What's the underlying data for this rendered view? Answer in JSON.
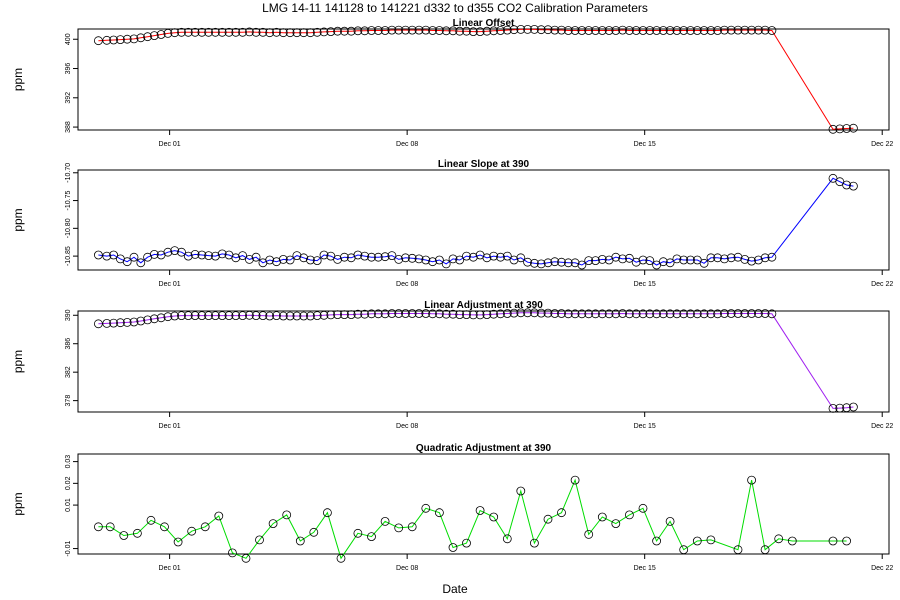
{
  "page_title": "LMG   14-11    141128 to 141221    d332 to d355   CO2 Calibration Parameters",
  "xlabel": "Date",
  "x_ticks": [
    "Dec 01",
    "Dec 08",
    "Dec 15",
    "Dec 22"
  ],
  "chart_data": [
    {
      "type": "line",
      "title": "Linear Offset",
      "ylabel": "ppm",
      "color": "#ff0000",
      "x_axis": "Day of year 2014 (Dec 01 = 335)",
      "xlim": [
        332.3,
        356.2
      ],
      "ylim": [
        387.6,
        401.4
      ],
      "y_ticks": [
        "400",
        "396",
        "392",
        "388"
      ],
      "x": [
        332.9,
        333.15,
        333.35,
        333.55,
        333.75,
        333.95,
        334.15,
        334.35,
        334.55,
        334.75,
        334.95,
        335.15,
        335.35,
        335.55,
        335.75,
        335.95,
        336.15,
        336.35,
        336.55,
        336.75,
        336.95,
        337.15,
        337.35,
        337.55,
        337.75,
        337.95,
        338.15,
        338.35,
        338.55,
        338.75,
        338.95,
        339.15,
        339.35,
        339.55,
        339.75,
        339.95,
        340.15,
        340.35,
        340.55,
        340.75,
        340.95,
        341.15,
        341.35,
        341.55,
        341.75,
        341.95,
        342.15,
        342.35,
        342.55,
        342.75,
        342.95,
        343.15,
        343.35,
        343.55,
        343.75,
        343.95,
        344.15,
        344.35,
        344.55,
        344.75,
        344.95,
        345.15,
        345.35,
        345.55,
        345.75,
        345.95,
        346.15,
        346.35,
        346.55,
        346.75,
        346.95,
        347.15,
        347.35,
        347.55,
        347.75,
        347.95,
        348.15,
        348.35,
        348.55,
        348.75,
        348.95,
        349.15,
        349.35,
        349.55,
        349.75,
        349.95,
        350.15,
        350.35,
        350.55,
        350.75,
        350.95,
        351.15,
        351.35,
        351.55,
        351.75,
        351.95,
        352.15,
        352.35,
        352.55,
        352.75,
        354.55,
        354.75,
        354.95,
        355.15
      ],
      "y": [
        399.8,
        399.85,
        399.9,
        399.95,
        400.0,
        400.05,
        400.2,
        400.35,
        400.5,
        400.65,
        400.8,
        400.9,
        400.95,
        400.95,
        400.95,
        400.95,
        400.95,
        400.95,
        400.95,
        400.95,
        400.95,
        400.95,
        401.0,
        400.95,
        400.95,
        400.9,
        400.95,
        400.9,
        400.9,
        400.9,
        400.9,
        400.9,
        400.95,
        401.0,
        401.05,
        401.1,
        401.1,
        401.1,
        401.15,
        401.15,
        401.2,
        401.2,
        401.2,
        401.25,
        401.25,
        401.25,
        401.25,
        401.25,
        401.25,
        401.2,
        401.2,
        401.15,
        401.15,
        401.1,
        401.1,
        401.05,
        401.05,
        401.1,
        401.15,
        401.2,
        401.25,
        401.3,
        401.35,
        401.35,
        401.35,
        401.3,
        401.3,
        401.25,
        401.25,
        401.2,
        401.2,
        401.2,
        401.2,
        401.2,
        401.2,
        401.2,
        401.2,
        401.25,
        401.2,
        401.2,
        401.2,
        401.2,
        401.2,
        401.2,
        401.2,
        401.2,
        401.2,
        401.2,
        401.2,
        401.2,
        401.2,
        401.2,
        401.25,
        401.25,
        401.25,
        401.25,
        401.25,
        401.25,
        401.25,
        401.2,
        387.7,
        387.75,
        387.8,
        387.85
      ]
    },
    {
      "type": "line",
      "title": "Linear Slope at 390",
      "ylabel": "ppm",
      "color": "#0000ff",
      "x_axis": "Day of year 2014 (Dec 01 = 335)",
      "xlim": [
        332.3,
        356.2
      ],
      "ylim": [
        -10.875,
        -10.695
      ],
      "y_ticks": [
        "-10.70",
        "-10.75",
        "-10.80",
        "-10.85"
      ],
      "x": [
        332.9,
        333.15,
        333.35,
        333.55,
        333.75,
        333.95,
        334.15,
        334.35,
        334.55,
        334.75,
        334.95,
        335.15,
        335.35,
        335.55,
        335.75,
        335.95,
        336.15,
        336.35,
        336.55,
        336.75,
        336.95,
        337.15,
        337.35,
        337.55,
        337.75,
        337.95,
        338.15,
        338.35,
        338.55,
        338.75,
        338.95,
        339.15,
        339.35,
        339.55,
        339.75,
        339.95,
        340.15,
        340.35,
        340.55,
        340.75,
        340.95,
        341.15,
        341.35,
        341.55,
        341.75,
        341.95,
        342.15,
        342.35,
        342.55,
        342.75,
        342.95,
        343.15,
        343.35,
        343.55,
        343.75,
        343.95,
        344.15,
        344.35,
        344.55,
        344.75,
        344.95,
        345.15,
        345.35,
        345.55,
        345.75,
        345.95,
        346.15,
        346.35,
        346.55,
        346.75,
        346.95,
        347.15,
        347.35,
        347.55,
        347.75,
        347.95,
        348.15,
        348.35,
        348.55,
        348.75,
        348.95,
        349.15,
        349.35,
        349.55,
        349.75,
        349.95,
        350.15,
        350.35,
        350.55,
        350.75,
        350.95,
        351.15,
        351.35,
        351.55,
        351.75,
        351.95,
        352.15,
        352.35,
        352.55,
        352.75,
        354.55,
        354.75,
        354.95,
        355.15
      ],
      "y": [
        -10.848,
        -10.85,
        -10.848,
        -10.855,
        -10.86,
        -10.852,
        -10.862,
        -10.852,
        -10.847,
        -10.848,
        -10.843,
        -10.84,
        -10.843,
        -10.85,
        -10.847,
        -10.848,
        -10.849,
        -10.85,
        -10.846,
        -10.848,
        -10.853,
        -10.849,
        -10.856,
        -10.852,
        -10.862,
        -10.857,
        -10.86,
        -10.856,
        -10.857,
        -10.849,
        -10.853,
        -10.857,
        -10.858,
        -10.848,
        -10.85,
        -10.856,
        -10.852,
        -10.853,
        -10.848,
        -10.85,
        -10.852,
        -10.852,
        -10.851,
        -10.849,
        -10.856,
        -10.853,
        -10.854,
        -10.855,
        -10.857,
        -10.86,
        -10.857,
        -10.864,
        -10.855,
        -10.857,
        -10.85,
        -10.852,
        -10.848,
        -10.853,
        -10.85,
        -10.852,
        -10.85,
        -10.857,
        -10.853,
        -10.861,
        -10.863,
        -10.864,
        -10.862,
        -10.86,
        -10.861,
        -10.862,
        -10.862,
        -10.866,
        -10.858,
        -10.858,
        -10.856,
        -10.857,
        -10.852,
        -10.855,
        -10.854,
        -10.861,
        -10.857,
        -10.858,
        -10.866,
        -10.86,
        -10.862,
        -10.855,
        -10.857,
        -10.857,
        -10.857,
        -10.863,
        -10.853,
        -10.853,
        -10.855,
        -10.853,
        -10.852,
        -10.856,
        -10.859,
        -10.857,
        -10.853,
        -10.852,
        -10.71,
        -10.716,
        -10.722,
        -10.724
      ]
    },
    {
      "type": "line",
      "title": "Linear Adjustment at 390",
      "ylabel": "ppm",
      "color": "#a020f0",
      "x_axis": "Day of year 2014 (Dec 01 = 335)",
      "xlim": [
        332.3,
        356.2
      ],
      "ylim": [
        376.4,
        390.6
      ],
      "y_ticks": [
        "390",
        "386",
        "382",
        "378"
      ],
      "x": [
        332.9,
        333.15,
        333.35,
        333.55,
        333.75,
        333.95,
        334.15,
        334.35,
        334.55,
        334.75,
        334.95,
        335.15,
        335.35,
        335.55,
        335.75,
        335.95,
        336.15,
        336.35,
        336.55,
        336.75,
        336.95,
        337.15,
        337.35,
        337.55,
        337.75,
        337.95,
        338.15,
        338.35,
        338.55,
        338.75,
        338.95,
        339.15,
        339.35,
        339.55,
        339.75,
        339.95,
        340.15,
        340.35,
        340.55,
        340.75,
        340.95,
        341.15,
        341.35,
        341.55,
        341.75,
        341.95,
        342.15,
        342.35,
        342.55,
        342.75,
        342.95,
        343.15,
        343.35,
        343.55,
        343.75,
        343.95,
        344.15,
        344.35,
        344.55,
        344.75,
        344.95,
        345.15,
        345.35,
        345.55,
        345.75,
        345.95,
        346.15,
        346.35,
        346.55,
        346.75,
        346.95,
        347.15,
        347.35,
        347.55,
        347.75,
        347.95,
        348.15,
        348.35,
        348.55,
        348.75,
        348.95,
        349.15,
        349.35,
        349.55,
        349.75,
        349.95,
        350.15,
        350.35,
        350.55,
        350.75,
        350.95,
        351.15,
        351.35,
        351.55,
        351.75,
        351.95,
        352.15,
        352.35,
        352.55,
        352.75,
        354.55,
        354.75,
        354.95,
        355.15
      ],
      "y": [
        388.8,
        388.85,
        388.9,
        388.95,
        389.0,
        389.05,
        389.2,
        389.35,
        389.5,
        389.65,
        389.8,
        389.9,
        389.95,
        389.95,
        389.95,
        389.95,
        389.95,
        389.95,
        389.95,
        389.95,
        389.95,
        389.95,
        390.0,
        389.95,
        389.95,
        389.9,
        389.95,
        389.9,
        389.9,
        389.9,
        389.9,
        389.9,
        389.95,
        390.0,
        390.05,
        390.1,
        390.1,
        390.1,
        390.15,
        390.15,
        390.2,
        390.2,
        390.2,
        390.25,
        390.25,
        390.25,
        390.25,
        390.25,
        390.25,
        390.2,
        390.2,
        390.15,
        390.15,
        390.1,
        390.1,
        390.05,
        390.05,
        390.1,
        390.15,
        390.2,
        390.25,
        390.3,
        390.35,
        390.35,
        390.35,
        390.3,
        390.3,
        390.25,
        390.25,
        390.2,
        390.2,
        390.2,
        390.2,
        390.2,
        390.2,
        390.2,
        390.2,
        390.25,
        390.2,
        390.2,
        390.2,
        390.2,
        390.2,
        390.2,
        390.2,
        390.2,
        390.2,
        390.2,
        390.2,
        390.2,
        390.2,
        390.2,
        390.25,
        390.25,
        390.25,
        390.25,
        390.25,
        390.25,
        390.25,
        390.2,
        376.9,
        376.95,
        377.0,
        377.1
      ]
    },
    {
      "type": "line",
      "title": "Quadratic Adjustment at 390",
      "ylabel": "ppm",
      "color": "#00dd00",
      "x_axis": "Day of year 2014 (Dec 01 = 335)",
      "xlim": [
        332.3,
        356.2
      ],
      "ylim": [
        -0.0125,
        0.0335
      ],
      "y_ticks": [
        "0.03",
        "0.02",
        "0.01",
        "-0.01"
      ],
      "x": [
        332.9,
        333.25,
        333.65,
        334.05,
        334.45,
        334.85,
        335.25,
        335.65,
        336.05,
        336.45,
        336.85,
        337.25,
        337.65,
        338.05,
        338.45,
        338.85,
        339.25,
        339.65,
        340.05,
        340.55,
        340.95,
        341.35,
        341.75,
        342.15,
        342.55,
        342.95,
        343.35,
        343.75,
        344.15,
        344.55,
        344.95,
        345.35,
        345.75,
        346.15,
        346.55,
        346.95,
        347.35,
        347.75,
        348.15,
        348.55,
        348.95,
        349.35,
        349.75,
        350.15,
        350.55,
        350.95,
        351.75,
        352.15,
        352.55,
        352.95,
        353.35,
        354.55,
        354.95
      ],
      "y": [
        0.0,
        0.0,
        -0.004,
        -0.003,
        0.003,
        0.0,
        -0.007,
        -0.002,
        0.0,
        0.005,
        -0.012,
        -0.0145,
        -0.006,
        0.0015,
        0.0055,
        -0.0065,
        -0.0025,
        0.0065,
        -0.0145,
        -0.003,
        -0.0045,
        0.0025,
        -0.0005,
        0.0,
        0.0085,
        0.0065,
        -0.0095,
        -0.0075,
        0.0075,
        0.0045,
        -0.0055,
        0.0165,
        -0.0075,
        0.0035,
        0.0065,
        0.0215,
        -0.0035,
        0.0045,
        0.0015,
        0.0055,
        0.0085,
        -0.0065,
        0.0025,
        -0.0105,
        -0.0065,
        -0.006,
        -0.0105,
        0.0215,
        -0.0105,
        -0.0055,
        -0.0065,
        -0.0065,
        -0.0065
      ]
    }
  ]
}
